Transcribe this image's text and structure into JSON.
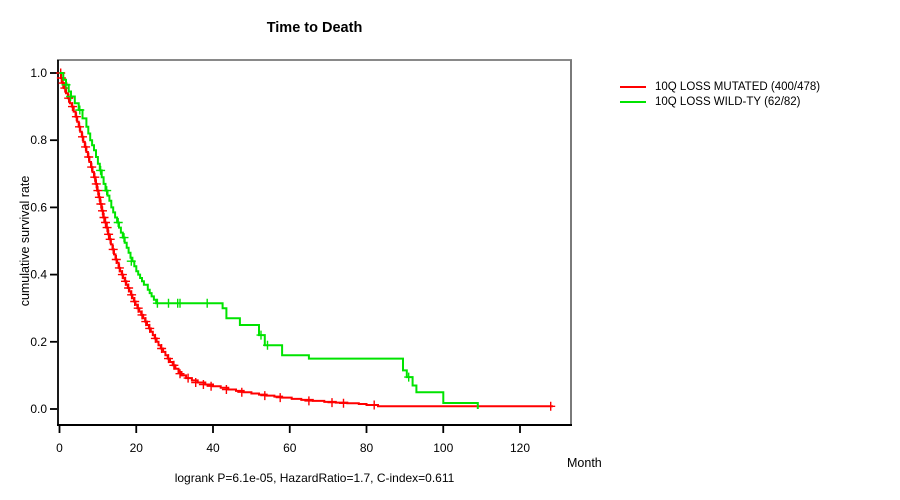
{
  "chart_data": {
    "type": "line",
    "subtype": "kaplan-meier-step-survival",
    "title": "Time to Death",
    "xlabel": "Month",
    "ylabel": "cumulative survival rate",
    "stats_line": "logrank P=6.1e-05, HazardRatio=1.7, C-index=0.611",
    "x_ticks": [
      0,
      20,
      40,
      60,
      80,
      100,
      120
    ],
    "y_ticks": [
      0.0,
      0.2,
      0.4,
      0.6,
      0.8,
      1.0
    ],
    "xlim": [
      0,
      133
    ],
    "ylim": [
      0.0,
      1.0
    ],
    "grid": false,
    "legend_position": "right-outside",
    "series": [
      {
        "name": "10Q LOSS MUTATED (400/478)",
        "color": "#ff0000",
        "points": [
          [
            0,
            1.0
          ],
          [
            0.4,
            0.985
          ],
          [
            0.8,
            0.97
          ],
          [
            1.2,
            0.955
          ],
          [
            1.7,
            0.94
          ],
          [
            2.2,
            0.925
          ],
          [
            2.7,
            0.91
          ],
          [
            3.2,
            0.9
          ],
          [
            3.7,
            0.885
          ],
          [
            4.2,
            0.87
          ],
          [
            4.6,
            0.855
          ],
          [
            5,
            0.84
          ],
          [
            5.4,
            0.825
          ],
          [
            5.8,
            0.81
          ],
          [
            6.2,
            0.795
          ],
          [
            6.6,
            0.78
          ],
          [
            7,
            0.765
          ],
          [
            7.4,
            0.75
          ],
          [
            7.8,
            0.735
          ],
          [
            8.2,
            0.72
          ],
          [
            8.6,
            0.705
          ],
          [
            9,
            0.69
          ],
          [
            9.4,
            0.67
          ],
          [
            9.8,
            0.65
          ],
          [
            10.2,
            0.63
          ],
          [
            10.6,
            0.61
          ],
          [
            11,
            0.59
          ],
          [
            11.4,
            0.57
          ],
          [
            11.8,
            0.555
          ],
          [
            12.2,
            0.54
          ],
          [
            12.6,
            0.52
          ],
          [
            13,
            0.505
          ],
          [
            13.4,
            0.49
          ],
          [
            13.8,
            0.475
          ],
          [
            14.2,
            0.46
          ],
          [
            14.6,
            0.445
          ],
          [
            15,
            0.435
          ],
          [
            15.4,
            0.42
          ],
          [
            15.8,
            0.41
          ],
          [
            16.2,
            0.4
          ],
          [
            16.6,
            0.39
          ],
          [
            17,
            0.38
          ],
          [
            17.4,
            0.37
          ],
          [
            17.8,
            0.36
          ],
          [
            18.2,
            0.35
          ],
          [
            18.6,
            0.34
          ],
          [
            19,
            0.33
          ],
          [
            19.4,
            0.32
          ],
          [
            19.8,
            0.31
          ],
          [
            20.3,
            0.3
          ],
          [
            20.8,
            0.29
          ],
          [
            21.3,
            0.28
          ],
          [
            21.8,
            0.27
          ],
          [
            22.3,
            0.26
          ],
          [
            22.8,
            0.25
          ],
          [
            23.3,
            0.24
          ],
          [
            23.8,
            0.23
          ],
          [
            24.3,
            0.22
          ],
          [
            24.8,
            0.21
          ],
          [
            25.3,
            0.2
          ],
          [
            25.8,
            0.19
          ],
          [
            26.4,
            0.18
          ],
          [
            27,
            0.17
          ],
          [
            27.6,
            0.16
          ],
          [
            28.2,
            0.15
          ],
          [
            28.8,
            0.14
          ],
          [
            29.5,
            0.13
          ],
          [
            30.2,
            0.12
          ],
          [
            31,
            0.11
          ],
          [
            31.8,
            0.1
          ],
          [
            33,
            0.092
          ],
          [
            34.5,
            0.085
          ],
          [
            36,
            0.079
          ],
          [
            38,
            0.073
          ],
          [
            40,
            0.068
          ],
          [
            42,
            0.063
          ],
          [
            44,
            0.058
          ],
          [
            46,
            0.054
          ],
          [
            48,
            0.05
          ],
          [
            50,
            0.046
          ],
          [
            52,
            0.043
          ],
          [
            54,
            0.04
          ],
          [
            56,
            0.037
          ],
          [
            58,
            0.034
          ],
          [
            60.5,
            0.03
          ],
          [
            63,
            0.027
          ],
          [
            66,
            0.024
          ],
          [
            69,
            0.021
          ],
          [
            72,
            0.019
          ],
          [
            75,
            0.017
          ],
          [
            78,
            0.015
          ],
          [
            80,
            0.012
          ],
          [
            83,
            0.008
          ],
          [
            128.6,
            0.008
          ]
        ],
        "censor_marks": [
          [
            0.3,
            1.0
          ],
          [
            0.5,
            0.985
          ],
          [
            0.9,
            0.97
          ],
          [
            1.4,
            0.955
          ],
          [
            2.4,
            0.925
          ],
          [
            3.4,
            0.9
          ],
          [
            4.4,
            0.87
          ],
          [
            5.2,
            0.84
          ],
          [
            6.0,
            0.81
          ],
          [
            6.8,
            0.78
          ],
          [
            7.6,
            0.75
          ],
          [
            8.4,
            0.72
          ],
          [
            9.2,
            0.69
          ],
          [
            9.6,
            0.67
          ],
          [
            10,
            0.65
          ],
          [
            10.4,
            0.63
          ],
          [
            10.8,
            0.61
          ],
          [
            11.2,
            0.59
          ],
          [
            11.6,
            0.57
          ],
          [
            12,
            0.555
          ],
          [
            12.4,
            0.54
          ],
          [
            12.8,
            0.52
          ],
          [
            13.2,
            0.505
          ],
          [
            14,
            0.475
          ],
          [
            14.8,
            0.445
          ],
          [
            15.6,
            0.42
          ],
          [
            16.4,
            0.4
          ],
          [
            17.2,
            0.38
          ],
          [
            18,
            0.36
          ],
          [
            18.8,
            0.34
          ],
          [
            19.6,
            0.32
          ],
          [
            20.5,
            0.3
          ],
          [
            21.5,
            0.28
          ],
          [
            22.5,
            0.26
          ],
          [
            23.5,
            0.24
          ],
          [
            25,
            0.21
          ],
          [
            26.6,
            0.18
          ],
          [
            28.4,
            0.15
          ],
          [
            29.8,
            0.13
          ],
          [
            31.4,
            0.105
          ],
          [
            33.5,
            0.092
          ],
          [
            35.5,
            0.079
          ],
          [
            37.5,
            0.073
          ],
          [
            39.5,
            0.068
          ],
          [
            43.5,
            0.058
          ],
          [
            47.5,
            0.05
          ],
          [
            53.5,
            0.04
          ],
          [
            57.5,
            0.034
          ],
          [
            65,
            0.024
          ],
          [
            71,
            0.019
          ],
          [
            74,
            0.017
          ],
          [
            82,
            0.012
          ],
          [
            128,
            0.008
          ]
        ]
      },
      {
        "name": "10Q LOSS WILD-TY (62/82)",
        "color": "#00e300",
        "points": [
          [
            0,
            1.0
          ],
          [
            1,
            0.98
          ],
          [
            1.7,
            0.965
          ],
          [
            2.4,
            0.945
          ],
          [
            3,
            0.93
          ],
          [
            4,
            0.91
          ],
          [
            5,
            0.89
          ],
          [
            6,
            0.865
          ],
          [
            7,
            0.84
          ],
          [
            7.5,
            0.82
          ],
          [
            8,
            0.8
          ],
          [
            8.5,
            0.785
          ],
          [
            9,
            0.77
          ],
          [
            9.5,
            0.75
          ],
          [
            10,
            0.73
          ],
          [
            10.5,
            0.71
          ],
          [
            11,
            0.69
          ],
          [
            11.5,
            0.67
          ],
          [
            12,
            0.65
          ],
          [
            12.5,
            0.635
          ],
          [
            13,
            0.62
          ],
          [
            13.5,
            0.6
          ],
          [
            14,
            0.585
          ],
          [
            14.5,
            0.57
          ],
          [
            15,
            0.555
          ],
          [
            15.5,
            0.54
          ],
          [
            16,
            0.525
          ],
          [
            16.5,
            0.51
          ],
          [
            17,
            0.495
          ],
          [
            17.5,
            0.48
          ],
          [
            18,
            0.465
          ],
          [
            18.5,
            0.45
          ],
          [
            19,
            0.44
          ],
          [
            19.5,
            0.425
          ],
          [
            20,
            0.41
          ],
          [
            20.5,
            0.4
          ],
          [
            21,
            0.39
          ],
          [
            21.5,
            0.38
          ],
          [
            22,
            0.37
          ],
          [
            23,
            0.355
          ],
          [
            23.5,
            0.345
          ],
          [
            24,
            0.335
          ],
          [
            24.6,
            0.325
          ],
          [
            25.2,
            0.315
          ],
          [
            42.5,
            0.3
          ],
          [
            43.5,
            0.27
          ],
          [
            47,
            0.25
          ],
          [
            52,
            0.22
          ],
          [
            53.5,
            0.19
          ],
          [
            58,
            0.16
          ],
          [
            65,
            0.15
          ],
          [
            89.5,
            0.115
          ],
          [
            90.5,
            0.095
          ],
          [
            92,
            0.07
          ],
          [
            93,
            0.05
          ],
          [
            100,
            0.018
          ],
          [
            109,
            0.0
          ]
        ],
        "censor_marks": [
          [
            1.7,
            0.965
          ],
          [
            2.9,
            0.93
          ],
          [
            5.3,
            0.89
          ],
          [
            10.7,
            0.71
          ],
          [
            12.3,
            0.65
          ],
          [
            15.3,
            0.555
          ],
          [
            16.8,
            0.51
          ],
          [
            18.7,
            0.44
          ],
          [
            25.5,
            0.315
          ],
          [
            28.4,
            0.315
          ],
          [
            30.8,
            0.315
          ],
          [
            31.4,
            0.315
          ],
          [
            38.5,
            0.315
          ],
          [
            52.5,
            0.22
          ],
          [
            54.2,
            0.19
          ],
          [
            91,
            0.095
          ]
        ]
      }
    ]
  }
}
